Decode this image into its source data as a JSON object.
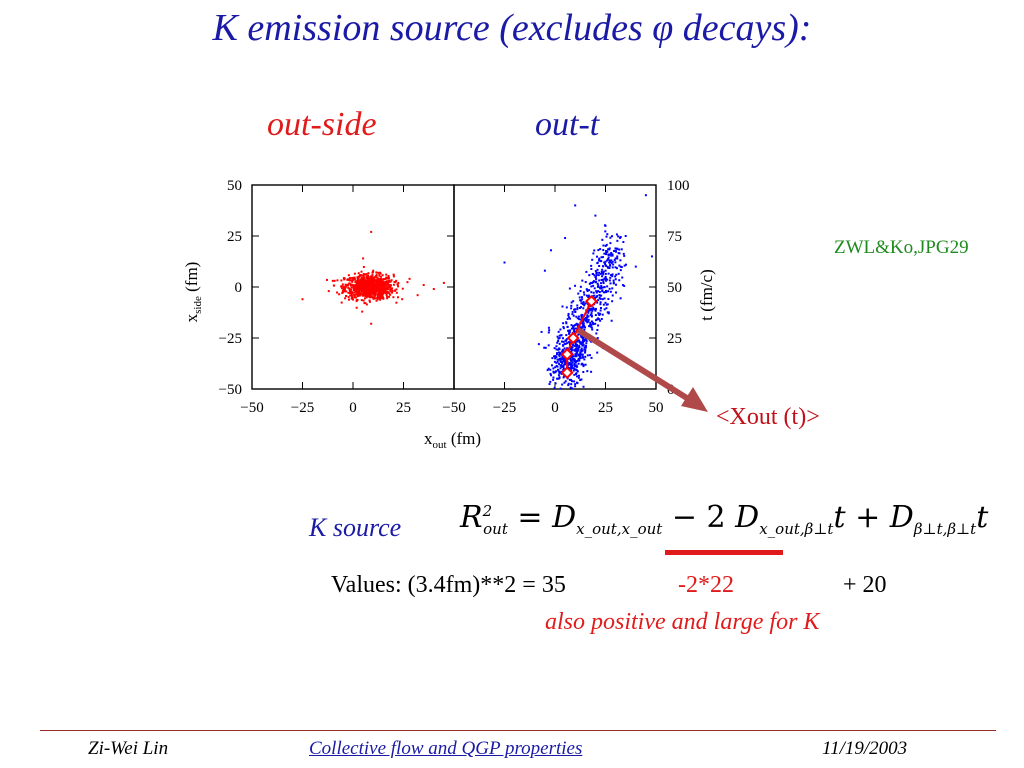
{
  "slide": {
    "title": "K emission source (excludes φ decays):",
    "subtitle_left": "out-side",
    "subtitle_right": "out-t",
    "reference": "ZWL&Ko,JPG29",
    "callout": "<Xout (t)>",
    "k_source_label": "K  source",
    "values_label": "Values: (3.4fm)**2 =  35",
    "values_neg": "-2*22",
    "values_pos": "+ 20",
    "note": "also positive and large for K",
    "colors": {
      "title": "#1a1aa6",
      "red": "#e11b1b",
      "blue": "#1a1aa6",
      "green": "#1f8a1f",
      "arrow": "#b04a4a"
    }
  },
  "formula": {
    "lhs": "R",
    "lhs_sup": "2",
    "lhs_sub": "out",
    "eq": " = ",
    "d1": "D",
    "d1_sub": "x_out,x_out",
    "minus2": " − 2 ",
    "d2": "D",
    "d2_sub": "x_out,β⊥t",
    "t1": "t",
    "plus": " + ",
    "d3": "D",
    "d3_sub": "β⊥t,β⊥t"
  },
  "chart_data": [
    {
      "type": "scatter",
      "title": "out-side",
      "xlabel": "x_out (fm)",
      "ylabel": "x_side (fm)",
      "xlim": [
        -50,
        50
      ],
      "ylim": [
        -50,
        50
      ],
      "xticks": [
        "−50",
        "−25",
        "0",
        "25"
      ],
      "yticks": [
        "50",
        "25",
        "0",
        "−25",
        "−50"
      ],
      "series": [
        {
          "color": "#ff0000",
          "cluster": {
            "center_x": 8,
            "center_y": 0,
            "spread_x": 6,
            "spread_y": 3
          },
          "outliers": [
            [
              -25,
              -6
            ],
            [
              -12,
              -2
            ],
            [
              -10,
              3
            ],
            [
              35,
              1
            ],
            [
              40,
              -1
            ],
            [
              45,
              2
            ],
            [
              10,
              8
            ],
            [
              9,
              -18
            ],
            [
              5,
              14
            ],
            [
              20,
              -5
            ],
            [
              28,
              4
            ],
            [
              32,
              -4
            ],
            [
              9,
              27
            ]
          ]
        }
      ]
    },
    {
      "type": "scatter",
      "title": "out-t",
      "xlabel": "x_out (fm)",
      "ylabel": "t (fm/c)",
      "xlim": [
        -50,
        50
      ],
      "ylim": [
        0,
        100
      ],
      "xticks": [
        "−50",
        "−25",
        "0",
        "25",
        "50"
      ],
      "yticks": [
        "100",
        "75",
        "50",
        "25",
        "0"
      ],
      "series": [
        {
          "color": "#0000ff",
          "band": {
            "start_x": 5,
            "start_y": 10,
            "end_x": 30,
            "end_y": 70,
            "spread": 4
          },
          "outliers": [
            [
              -25,
              62
            ],
            [
              -5,
              58
            ],
            [
              -2,
              68
            ],
            [
              5,
              74
            ],
            [
              10,
              90
            ],
            [
              20,
              85
            ],
            [
              25,
              80
            ],
            [
              35,
              75
            ],
            [
              45,
              95
            ],
            [
              40,
              60
            ],
            [
              -8,
              22
            ],
            [
              -3,
              30
            ],
            [
              48,
              65
            ]
          ]
        },
        {
          "color": "#ff0000",
          "name": "<Xout (t)>",
          "marker": "diamond",
          "points": [
            [
              6,
              8
            ],
            [
              6,
              17
            ],
            [
              9,
              25
            ],
            [
              18,
              43
            ]
          ]
        }
      ]
    }
  ],
  "footer": {
    "author": "Zi-Wei Lin",
    "talk": "Collective flow and QGP properties",
    "date": "11/19/2003"
  }
}
